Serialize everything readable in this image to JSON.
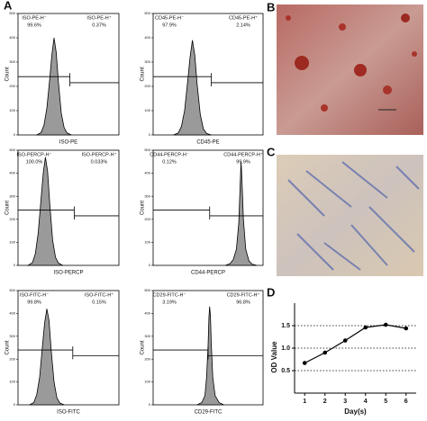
{
  "panel_labels": [
    "A",
    "B",
    "C",
    "D"
  ],
  "chart_data": [
    {
      "type": "area",
      "x_label": "ISO-PE",
      "y_label": "Count",
      "color": "#9a9a9a",
      "xlim": [
        0,
        7
      ],
      "ylim": [
        0,
        500
      ],
      "yticks": [
        0,
        100,
        200,
        300,
        400,
        500
      ],
      "x": [
        1.3,
        1.6,
        1.8,
        2.0,
        2.2,
        2.35,
        2.5,
        2.65,
        2.8,
        3.0,
        3.2,
        3.4,
        3.7
      ],
      "values": [
        0,
        10,
        40,
        110,
        230,
        330,
        400,
        340,
        220,
        90,
        30,
        8,
        0
      ],
      "gate_x": 3.6,
      "gates": [
        {
          "label": "ISO-PE-H⁻",
          "percent": "99.6%"
        },
        {
          "label": "ISO-PE-H⁺",
          "percent": "0.37%"
        }
      ]
    },
    {
      "type": "area",
      "x_label": "CD45-PE",
      "y_label": "Count",
      "color": "#9a9a9a",
      "xlim": [
        0,
        7
      ],
      "ylim": [
        0,
        500
      ],
      "yticks": [
        0,
        100,
        200,
        300,
        400,
        500
      ],
      "x": [
        1.3,
        1.6,
        1.8,
        2.0,
        2.2,
        2.35,
        2.5,
        2.65,
        2.8,
        3.0,
        3.2,
        3.4,
        3.7
      ],
      "values": [
        0,
        8,
        35,
        100,
        220,
        320,
        390,
        330,
        210,
        85,
        25,
        6,
        0
      ],
      "gate_x": 3.7,
      "gates": [
        {
          "label": "CD45-PE-H⁻",
          "percent": "97.9%"
        },
        {
          "label": "CD45-PE-H⁺",
          "percent": "2.14%"
        }
      ]
    },
    {
      "type": "area",
      "x_label": "ISO-PERCP",
      "y_label": "Count",
      "color": "#9a9a9a",
      "xlim": [
        0,
        7
      ],
      "ylim": [
        0,
        500
      ],
      "yticks": [
        0,
        100,
        200,
        300,
        400,
        500
      ],
      "x": [
        0.7,
        1.0,
        1.2,
        1.4,
        1.6,
        1.75,
        1.9,
        2.05,
        2.2,
        2.4,
        2.6,
        2.8,
        3.1
      ],
      "values": [
        0,
        12,
        50,
        140,
        290,
        400,
        470,
        410,
        270,
        110,
        35,
        10,
        0
      ],
      "gate_x": 3.9,
      "gates": [
        {
          "label": "ISO-PERCP-H⁻",
          "percent": "100.0%"
        },
        {
          "label": "ISO-PERCP-H⁺",
          "percent": "0.033%"
        }
      ]
    },
    {
      "type": "area",
      "x_label": "CD44-PERCP",
      "y_label": "Count",
      "color": "#9a9a9a",
      "xlim": [
        0,
        7
      ],
      "ylim": [
        0,
        500
      ],
      "yticks": [
        0,
        100,
        200,
        300,
        400,
        500
      ],
      "x": [
        4.6,
        4.9,
        5.1,
        5.3,
        5.45,
        5.55,
        5.6,
        5.65,
        5.75,
        5.9,
        6.1,
        6.3,
        6.6
      ],
      "values": [
        0,
        8,
        25,
        70,
        180,
        360,
        450,
        380,
        200,
        70,
        20,
        5,
        0
      ],
      "gate_x": 3.6,
      "gates": [
        {
          "label": "CD44-PERCP-H⁻",
          "percent": "0.12%"
        },
        {
          "label": "CD44-PERCP-H⁺",
          "percent": "99.9%"
        }
      ]
    },
    {
      "type": "area",
      "x_label": "ISO-FITC",
      "y_label": "Count",
      "color": "#9a9a9a",
      "xlim": [
        0,
        7
      ],
      "ylim": [
        0,
        500
      ],
      "yticks": [
        0,
        100,
        200,
        300,
        400,
        500
      ],
      "x": [
        0.8,
        1.1,
        1.3,
        1.5,
        1.7,
        1.85,
        2.0,
        2.15,
        2.3,
        2.5,
        2.7,
        2.9,
        3.2
      ],
      "values": [
        0,
        10,
        45,
        120,
        260,
        360,
        420,
        370,
        240,
        100,
        30,
        8,
        0
      ],
      "gate_x": 3.8,
      "gates": [
        {
          "label": "ISO-FITC-H⁻",
          "percent": "99.8%"
        },
        {
          "label": "ISO-FITC-H⁺",
          "percent": "0.15%"
        }
      ]
    },
    {
      "type": "area",
      "x_label": "CD29-FITC",
      "y_label": "Count",
      "color": "#9a9a9a",
      "xlim": [
        0,
        7
      ],
      "ylim": [
        0,
        500
      ],
      "yticks": [
        0,
        100,
        200,
        300,
        400,
        500
      ],
      "x": [
        2.8,
        3.1,
        3.3,
        3.4,
        3.5,
        3.55,
        3.6,
        3.65,
        3.7,
        3.8,
        3.95,
        4.2,
        4.5
      ],
      "values": [
        0,
        10,
        40,
        120,
        260,
        380,
        430,
        390,
        270,
        120,
        40,
        10,
        0
      ],
      "gate_x": 3.5,
      "gates": [
        {
          "label": "CD29-FITC-H⁻",
          "percent": "3.19%"
        },
        {
          "label": "CD29-FITC-H⁺",
          "percent": "96.8%"
        }
      ]
    },
    {
      "type": "line",
      "x_label": "Day(s)",
      "y_label": "OD Value",
      "color": "#000000",
      "grid": true,
      "x": [
        1,
        2,
        3,
        4,
        5,
        6
      ],
      "values": [
        0.67,
        0.9,
        1.17,
        1.46,
        1.52,
        1.44
      ],
      "xlim": [
        0.5,
        6.5
      ],
      "xticks": [
        1,
        2,
        3,
        4,
        5,
        6
      ],
      "ylim": [
        0,
        2
      ],
      "yticks": [
        {
          "value": 0.5,
          "label": "0.5"
        },
        {
          "value": 1,
          "label": "1.0"
        },
        {
          "value": 1.5,
          "label": "1.5"
        }
      ]
    }
  ]
}
